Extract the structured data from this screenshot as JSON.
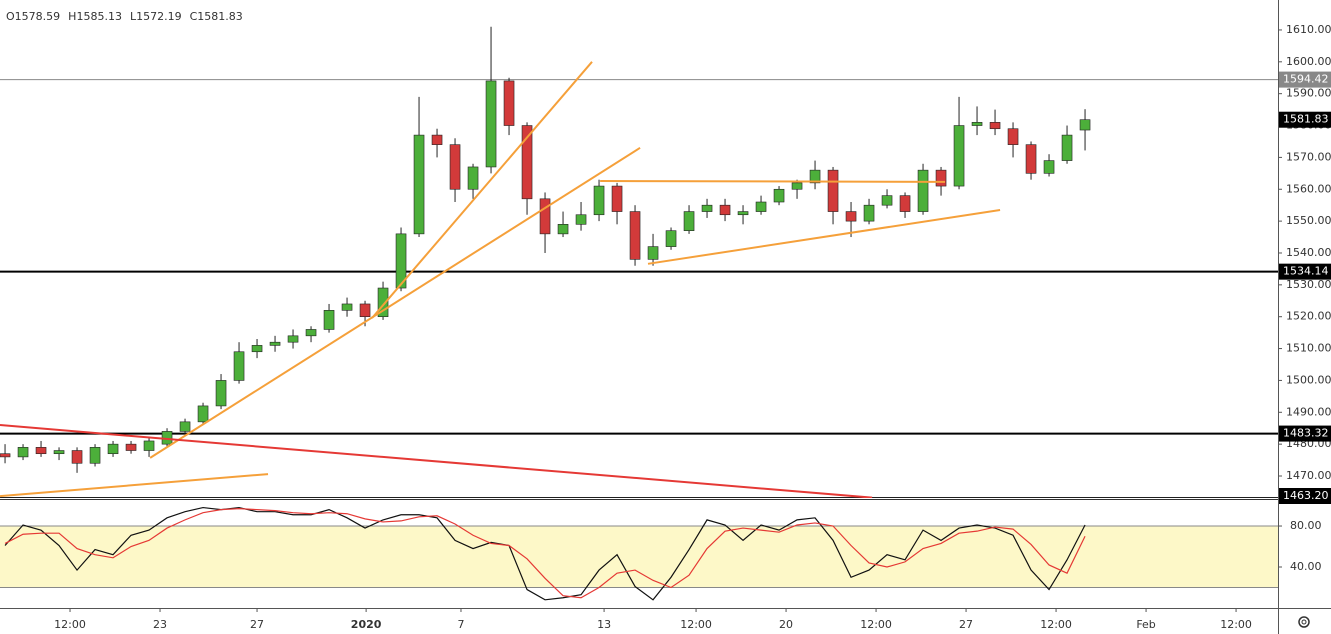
{
  "chart_data": [
    {
      "type": "candlestick",
      "ohlc_header": [
        {
          "label": "O",
          "value": 1578.59
        },
        {
          "label": "H",
          "value": 1585.13
        },
        {
          "label": "L",
          "value": 1572.19
        },
        {
          "label": "C",
          "value": 1581.83
        }
      ],
      "up_color": "#4caf3a",
      "down_color": "#d23a3a",
      "wick_color": "#222",
      "open": [
        1477,
        1476,
        1479,
        1477,
        1478,
        1474,
        1477,
        1480,
        1478,
        1480,
        1484,
        1487,
        1492,
        1500,
        1509,
        1511,
        1512,
        1514,
        1516,
        1522,
        1524,
        1520,
        1529,
        1546,
        1577,
        1574,
        1560,
        1567,
        1594,
        1580,
        1557,
        1546,
        1549,
        1552,
        1561,
        1553,
        1538,
        1542,
        1547,
        1553,
        1555,
        1552,
        1553,
        1556,
        1560,
        1562,
        1566,
        1553,
        1550,
        1555,
        1558,
        1553,
        1566,
        1561,
        1580,
        1581,
        1579,
        1574,
        1565,
        1569,
        1578.59
      ],
      "high": [
        1480,
        1480,
        1481,
        1479,
        1479,
        1480,
        1481,
        1481,
        1482,
        1485,
        1488,
        1493,
        1502,
        1512,
        1513,
        1514,
        1516,
        1517,
        1524,
        1526,
        1525,
        1531,
        1548,
        1589,
        1579,
        1576,
        1568,
        1611,
        1595,
        1581,
        1559,
        1553,
        1556,
        1563,
        1562,
        1555,
        1546,
        1548,
        1555,
        1557,
        1557,
        1555,
        1558,
        1561,
        1563,
        1569,
        1567,
        1556,
        1557,
        1560,
        1559,
        1568,
        1567,
        1589,
        1586,
        1585,
        1581,
        1575,
        1571,
        1580,
        1585.13
      ],
      "low": [
        1474,
        1475,
        1476,
        1475,
        1471,
        1473,
        1476,
        1477,
        1476,
        1479,
        1483,
        1486,
        1491,
        1499,
        1507,
        1509,
        1510,
        1512,
        1515,
        1520,
        1517,
        1519,
        1528,
        1545,
        1570,
        1556,
        1557,
        1565,
        1577,
        1552,
        1540,
        1545,
        1547,
        1550,
        1549,
        1536,
        1536,
        1541,
        1546,
        1551,
        1550,
        1549,
        1552,
        1555,
        1557,
        1560,
        1549,
        1545,
        1549,
        1554,
        1551,
        1552,
        1558,
        1560,
        1577,
        1577,
        1570,
        1563,
        1564,
        1568,
        1572.19
      ],
      "close": [
        1476,
        1479,
        1477,
        1478,
        1474,
        1479,
        1480,
        1478,
        1481,
        1484,
        1487,
        1492,
        1500,
        1509,
        1511,
        1512,
        1514,
        1516,
        1522,
        1524,
        1520,
        1529,
        1546,
        1577,
        1574,
        1560,
        1567,
        1594,
        1580,
        1557,
        1546,
        1549,
        1552,
        1561,
        1553,
        1538,
        1542,
        1547,
        1553,
        1555,
        1552,
        1553,
        1556,
        1560,
        1562,
        1566,
        1553,
        1550,
        1555,
        1558,
        1553,
        1566,
        1561,
        1580,
        1581,
        1579,
        1574,
        1565,
        1569,
        1577,
        1581.83
      ],
      "xlim": [
        -0.28,
        70.72
      ],
      "xticks": [
        {
          "value": 3.61,
          "label": "12:00"
        },
        {
          "value": 8.61,
          "label": "23"
        },
        {
          "value": 14.0,
          "label": "27"
        },
        {
          "value": 20.06,
          "label": "2020",
          "bold": true
        },
        {
          "value": 25.33,
          "label": "7"
        },
        {
          "value": 33.28,
          "label": "13"
        },
        {
          "value": 38.39,
          "label": "12:00"
        },
        {
          "value": 43.39,
          "label": "20"
        },
        {
          "value": 48.39,
          "label": "12:00"
        },
        {
          "value": 53.39,
          "label": "27"
        },
        {
          "value": 58.39,
          "label": "12:00"
        },
        {
          "value": 63.39,
          "label": "Feb"
        },
        {
          "value": 68.39,
          "label": "12:00"
        }
      ],
      "ylim": [
        1463.1,
        1619.4
      ],
      "yticks": [
        {
          "value": 1470,
          "label": "1470.00"
        },
        {
          "value": 1480,
          "label": "1480.00"
        },
        {
          "value": 1490,
          "label": "1490.00"
        },
        {
          "value": 1500,
          "label": "1500.00"
        },
        {
          "value": 1510,
          "label": "1510.00"
        },
        {
          "value": 1520,
          "label": "1520.00"
        },
        {
          "value": 1530,
          "label": "1530.00"
        },
        {
          "value": 1540,
          "label": "1540.00"
        },
        {
          "value": 1550,
          "label": "1550.00"
        },
        {
          "value": 1560,
          "label": "1560.00"
        },
        {
          "value": 1570,
          "label": "1570.00"
        },
        {
          "value": 1580,
          "label": "1580.00"
        },
        {
          "value": 1590,
          "label": "1590.00"
        },
        {
          "value": 1600,
          "label": "1600.00"
        },
        {
          "value": 1610,
          "label": "1610.00"
        }
      ],
      "hlines": [
        {
          "value": 1594.42,
          "color": "#888888",
          "width": 1,
          "tag": "#888888"
        },
        {
          "value": 1534.14,
          "color": "#000000",
          "width": 2,
          "tag": "#000000"
        },
        {
          "value": 1483.32,
          "color": "#000000",
          "width": 2,
          "tag": "#000000"
        },
        {
          "value": 1463.2,
          "label": "1463.20",
          "color": "#000000",
          "width": 1,
          "tag": "#000000"
        }
      ],
      "last_tag_color": "#000000",
      "drawings": [
        {
          "color": "#f5a03a",
          "points": [
            [
              -0.28,
              1463.7
            ],
            [
              14.61,
              1470.6
            ]
          ]
        },
        {
          "color": "#f5a03a",
          "points": [
            [
              20.39,
              1519.6
            ],
            [
              32.61,
              1600.0
            ]
          ]
        },
        {
          "color": "#f5a03a",
          "points": [
            [
              8.06,
              1475.7
            ],
            [
              35.28,
              1573.0
            ]
          ]
        },
        {
          "color": "#f5a03a",
          "points": [
            [
              33.06,
              1562.6
            ],
            [
              52.22,
              1562.3
            ]
          ]
        },
        {
          "color": "#f5a03a",
          "points": [
            [
              35.72,
              1536.6
            ],
            [
              55.28,
              1553.5
            ]
          ]
        },
        {
          "color": "#e53935",
          "points": [
            [
              -0.28,
              1486.0
            ],
            [
              48.17,
              1463.2
            ]
          ]
        }
      ]
    },
    {
      "type": "line",
      "band": [
        20,
        80
      ],
      "band_color": "#fdf8c8",
      "ylim": [
        0,
        105.4
      ],
      "yticks": [
        {
          "value": 80,
          "label": "80.00"
        },
        {
          "value": 40,
          "label": "40.00"
        }
      ],
      "series": [
        {
          "color": "#111111",
          "values": [
            61,
            81,
            76,
            61,
            37,
            57,
            52,
            71,
            76,
            88,
            94,
            98,
            96,
            98,
            94,
            94,
            91,
            91,
            96,
            88,
            78,
            86,
            91,
            91,
            88,
            66,
            58,
            64,
            61,
            18,
            8,
            10,
            13,
            37,
            52,
            21,
            8,
            30,
            57,
            86,
            81,
            66,
            81,
            76,
            86,
            88,
            66,
            30,
            37,
            52,
            47,
            76,
            66,
            78,
            81,
            78,
            71,
            37,
            18,
            47,
            81
          ]
        },
        {
          "color": "#e53935",
          "values": [
            63,
            72,
            73,
            73,
            58,
            52,
            49,
            60,
            66,
            78,
            86,
            93,
            96,
            97,
            96,
            95,
            93,
            92,
            93,
            92,
            87,
            84,
            85,
            89,
            90,
            82,
            71,
            63,
            61,
            48,
            29,
            12,
            10,
            20,
            34,
            37,
            27,
            20,
            32,
            58,
            75,
            78,
            76,
            74,
            81,
            83,
            80,
            61,
            44,
            40,
            45,
            58,
            63,
            73,
            75,
            79,
            77,
            62,
            42,
            34,
            70
          ]
        }
      ]
    }
  ]
}
